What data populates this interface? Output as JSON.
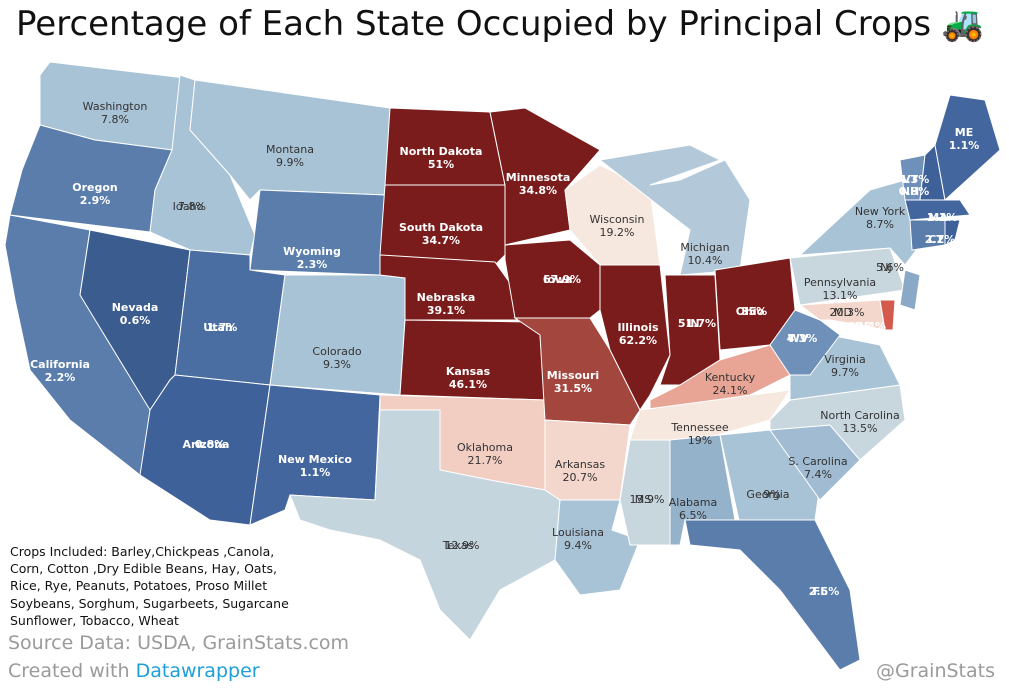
{
  "title": "Percentage of Each State Occupied by Principal Crops 🚜",
  "states": [
    {
      "name": "Washington",
      "value": 7.8,
      "label": "7.8%",
      "color": "#a9c3d6"
    },
    {
      "name": "Oregon",
      "value": 2.9,
      "label": "2.9%",
      "color": "#5a7dac"
    },
    {
      "name": "California",
      "value": 2.2,
      "label": "2.2%",
      "color": "#5a7dac"
    },
    {
      "name": "Nevada",
      "value": 0.6,
      "label": "0.6%",
      "color": "#3b5c8f"
    },
    {
      "name": "Idaho",
      "value": 7.8,
      "label": "7.8%",
      "color": "#a9c3d6"
    },
    {
      "name": "Montana",
      "value": 9.9,
      "label": "9.9%",
      "color": "#a9c3d6"
    },
    {
      "name": "Wyoming",
      "value": 2.3,
      "label": "2.3%",
      "color": "#5a7dac"
    },
    {
      "name": "Utah",
      "value": 1.7,
      "label": "1.7%",
      "color": "#4b6ea2"
    },
    {
      "name": "Arizona",
      "value": 0.8,
      "label": "0.8%",
      "color": "#3e619a"
    },
    {
      "name": "Colorado",
      "value": 9.3,
      "label": "9.3%",
      "color": "#a9c3d6"
    },
    {
      "name": "New Mexico",
      "value": 1.1,
      "label": "1.1%",
      "color": "#43669e"
    },
    {
      "name": "North Dakota",
      "value": 51,
      "label": "51%",
      "color": "#7b1c1c"
    },
    {
      "name": "South Dakota",
      "value": 34.7,
      "label": "34.7%",
      "color": "#7b1c1c"
    },
    {
      "name": "Nebraska",
      "value": 39.1,
      "label": "39.1%",
      "color": "#7b1c1c"
    },
    {
      "name": "Kansas",
      "value": 46.1,
      "label": "46.1%",
      "color": "#7b1c1c"
    },
    {
      "name": "Oklahoma",
      "value": 21.7,
      "label": "21.7%",
      "color": "#f1cdc2"
    },
    {
      "name": "Texas",
      "value": 12.9,
      "label": "12.9%",
      "color": "#c5d5de"
    },
    {
      "name": "Minnesota",
      "value": 34.8,
      "label": "34.8%",
      "color": "#7b1c1c"
    },
    {
      "name": "Iowa",
      "value": 67.9,
      "label": "67.9%",
      "color": "#7b1c1c"
    },
    {
      "name": "Missouri",
      "value": 31.5,
      "label": "31.5%",
      "color": "#a2463e"
    },
    {
      "name": "Arkansas",
      "value": 20.7,
      "label": "20.7%",
      "color": "#f3d6cc"
    },
    {
      "name": "Louisiana",
      "value": 9.4,
      "label": "9.4%",
      "color": "#a9c3d6"
    },
    {
      "name": "Wisconsin",
      "value": 19.2,
      "label": "19.2%",
      "color": "#f6e8df"
    },
    {
      "name": "Illinois",
      "value": 62.2,
      "label": "62.2%",
      "color": "#7b1c1c"
    },
    {
      "name": "Michigan",
      "value": 10.4,
      "label": "10.4%",
      "color": "#b3c9d9"
    },
    {
      "name": "IN",
      "value": 51.7,
      "label": "51.7%",
      "color": "#7b1c1c"
    },
    {
      "name": "Ohio",
      "value": 35,
      "label": "35%",
      "color": "#7b1c1c"
    },
    {
      "name": "Kentucky",
      "value": 24.1,
      "label": "24.1%",
      "color": "#e8a495"
    },
    {
      "name": "Tennessee",
      "value": 19,
      "label": "19%",
      "color": "#f6e8df"
    },
    {
      "name": "MS",
      "value": 13.9,
      "label": "13.9%",
      "color": "#c8d6de"
    },
    {
      "name": "Alabama",
      "value": 6.5,
      "label": "6.5%",
      "color": "#95b2cb"
    },
    {
      "name": "Georgia",
      "value": 9,
      "label": "9%",
      "color": "#a9c3d6"
    },
    {
      "name": "FL",
      "value": 2.5,
      "label": "2.5%",
      "color": "#5a7dac"
    },
    {
      "name": "S. Carolina",
      "value": 7.4,
      "label": "7.4%",
      "color": "#a0bbd2"
    },
    {
      "name": "North Carolina",
      "value": 13.5,
      "label": "13.5%",
      "color": "#c8d6de"
    },
    {
      "name": "Virginia",
      "value": 9.7,
      "label": "9.7%",
      "color": "#a9c3d6"
    },
    {
      "name": "WV",
      "value": 4.3,
      "label": "4.3%",
      "color": "#6f90b9"
    },
    {
      "name": "Pennsylvania",
      "value": 13.1,
      "label": "13.1%",
      "color": "#c8d6de"
    },
    {
      "name": "New York",
      "value": 8.7,
      "label": "8.7%",
      "color": "#a9c3d6"
    },
    {
      "name": "MD",
      "value": 20.3,
      "label": "20.3%",
      "color": "#f3d6cc"
    },
    {
      "name": "DE",
      "value": 27.4,
      "label": "27.4%",
      "color": "#d35a4c"
    },
    {
      "name": "NJ",
      "value": 5.6,
      "label": "5.6%",
      "color": "#8aa9c6"
    },
    {
      "name": "VT",
      "value": 4.3,
      "label": "4.3%",
      "color": "#6f90b9"
    },
    {
      "name": "NH",
      "value": 0.9,
      "label": "0.9%",
      "color": "#3e619a"
    },
    {
      "name": "ME",
      "value": 1.1,
      "label": "1.1%",
      "color": "#43669e"
    },
    {
      "name": "MA",
      "value": 1.1,
      "label": "1.1%",
      "color": "#43669e"
    },
    {
      "name": "CT",
      "value": 2.2,
      "label": "2.2%",
      "color": "#5a7dac"
    },
    {
      "name": "RI",
      "value": 0.7,
      "label": "0.7%",
      "color": "#3e619a"
    }
  ],
  "note": [
    "Crops Included: Barley,Chickpeas ,Canola,",
    "Corn, Cotton ,Dry Edible Beans, Hay, Oats,",
    "Rice, Rye, Peanuts, Potatoes, Proso Millet",
    "Soybeans, Sorghum, Sugarbeets, Sugarcane",
    "Sunflower, Tobacco, Wheat"
  ],
  "source": "Source Data: USDA, GrainStats.com",
  "credit": "Created with",
  "credit_link": "Datawrapper",
  "handle": "@GrainStats"
}
